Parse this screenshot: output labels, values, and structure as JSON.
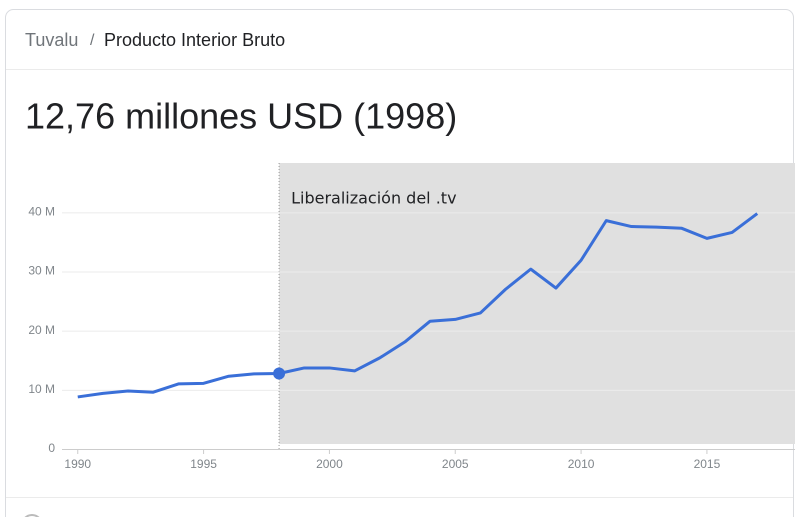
{
  "breadcrumb": {
    "country": "Tuvalu",
    "separator": "/",
    "indicator": "Producto Interior Bruto"
  },
  "headline": "12,76 millones USD (1998)",
  "chart_data": {
    "type": "line",
    "x": [
      1990,
      1991,
      1992,
      1993,
      1994,
      1995,
      1996,
      1997,
      1998,
      1999,
      2000,
      2001,
      2002,
      2003,
      2004,
      2005,
      2006,
      2007,
      2008,
      2009,
      2010,
      2011,
      2012,
      2013,
      2014,
      2015,
      2016,
      2017
    ],
    "series": [
      {
        "name": "Producto Interior Bruto",
        "color": "#3a6fd8",
        "values": [
          8.8,
          9.4,
          9.8,
          9.6,
          11.0,
          11.1,
          12.3,
          12.7,
          12.76,
          13.7,
          13.7,
          13.2,
          15.4,
          18.1,
          21.6,
          21.9,
          23.0,
          27.0,
          30.4,
          27.2,
          31.9,
          38.6,
          37.6,
          37.5,
          37.3,
          35.6,
          36.6,
          39.8
        ]
      }
    ],
    "highlight_point": 1998,
    "annotation": {
      "start": 1998,
      "label": "Liberalización del .tv",
      "color": "#e0e0e0"
    },
    "xlim": [
      1988.5,
      2018.5
    ],
    "xticks": [
      1990,
      1995,
      2000,
      2005,
      2010,
      2015
    ],
    "ylim": [
      0,
      48
    ],
    "yticks": [
      0,
      {
        "value": 10,
        "label": "10 M"
      },
      {
        "value": 20,
        "label": "20 M"
      },
      {
        "value": 30,
        "label": "30 M"
      },
      {
        "value": 40,
        "label": "40 M"
      }
    ],
    "grid": true
  }
}
